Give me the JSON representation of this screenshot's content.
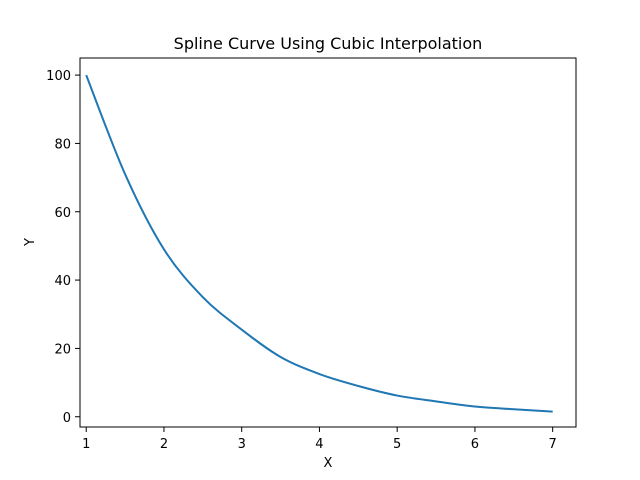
{
  "chart_data": {
    "type": "line",
    "title": "Spline Curve Using Cubic Interpolation",
    "xlabel": "X",
    "ylabel": "Y",
    "xlim": [
      0.92,
      7.3
    ],
    "ylim": [
      -3,
      105
    ],
    "xticks": [
      1,
      2,
      3,
      4,
      5,
      6,
      7
    ],
    "yticks": [
      0,
      20,
      40,
      60,
      80,
      100
    ],
    "grid": false,
    "series": [
      {
        "color": "#1f77b4",
        "x": [
          1,
          1.5,
          2,
          2.5,
          3,
          3.5,
          4,
          4.5,
          5,
          5.5,
          6,
          6.5,
          7
        ],
        "y": [
          100,
          71,
          49,
          35,
          25.5,
          17.5,
          12.5,
          9,
          6.2,
          4.5,
          3.0,
          2.2,
          1.5
        ]
      }
    ]
  }
}
